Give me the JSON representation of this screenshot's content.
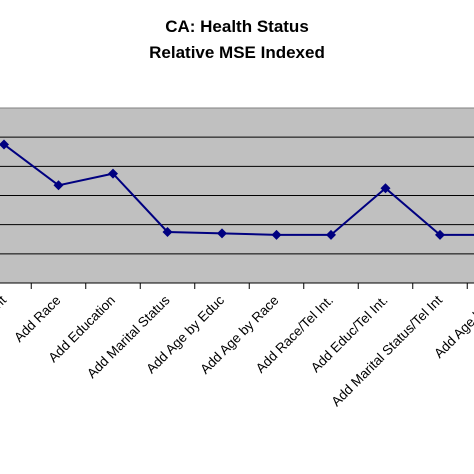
{
  "chart_data": {
    "type": "line",
    "title": "CA: Health Status",
    "subtitle": "Relative MSE Indexed",
    "xlabel": "",
    "ylabel": "",
    "categories": [
      "Add Final Weight",
      "Add Race",
      "Add Education",
      "Add Marital Status",
      "Add Age by Educ",
      "Add Age by Race",
      "Add Race/Tel Int.",
      "Add Educ/Tel Int.",
      "Add Marital Status/Tel Int.",
      "Add Age by Educ/Tel Int."
    ],
    "visible_tick_labels": [
      "al Weight",
      "Add Race",
      "Add Education",
      "Add Marital Status",
      "Add Age by Educ",
      "Add Age by Race",
      "Add Race/Tel Int.",
      "Add Educ/Tel Int.",
      "Add Marital Status/Tel Int",
      "Add Age by E"
    ],
    "series": [
      {
        "values": [
          0.95,
          0.67,
          0.75,
          0.35,
          0.34,
          0.33,
          0.33,
          0.65,
          0.33,
          0.33
        ]
      }
    ],
    "ylim": [
      0,
      1.2
    ],
    "yticks": [
      0,
      0.2,
      0.4,
      0.6,
      0.8,
      1.0
    ],
    "grid": true,
    "legend": "none",
    "colors": {
      "plot_background": "#c0c0c0",
      "line": "#000080",
      "gridline": "#000000"
    }
  }
}
